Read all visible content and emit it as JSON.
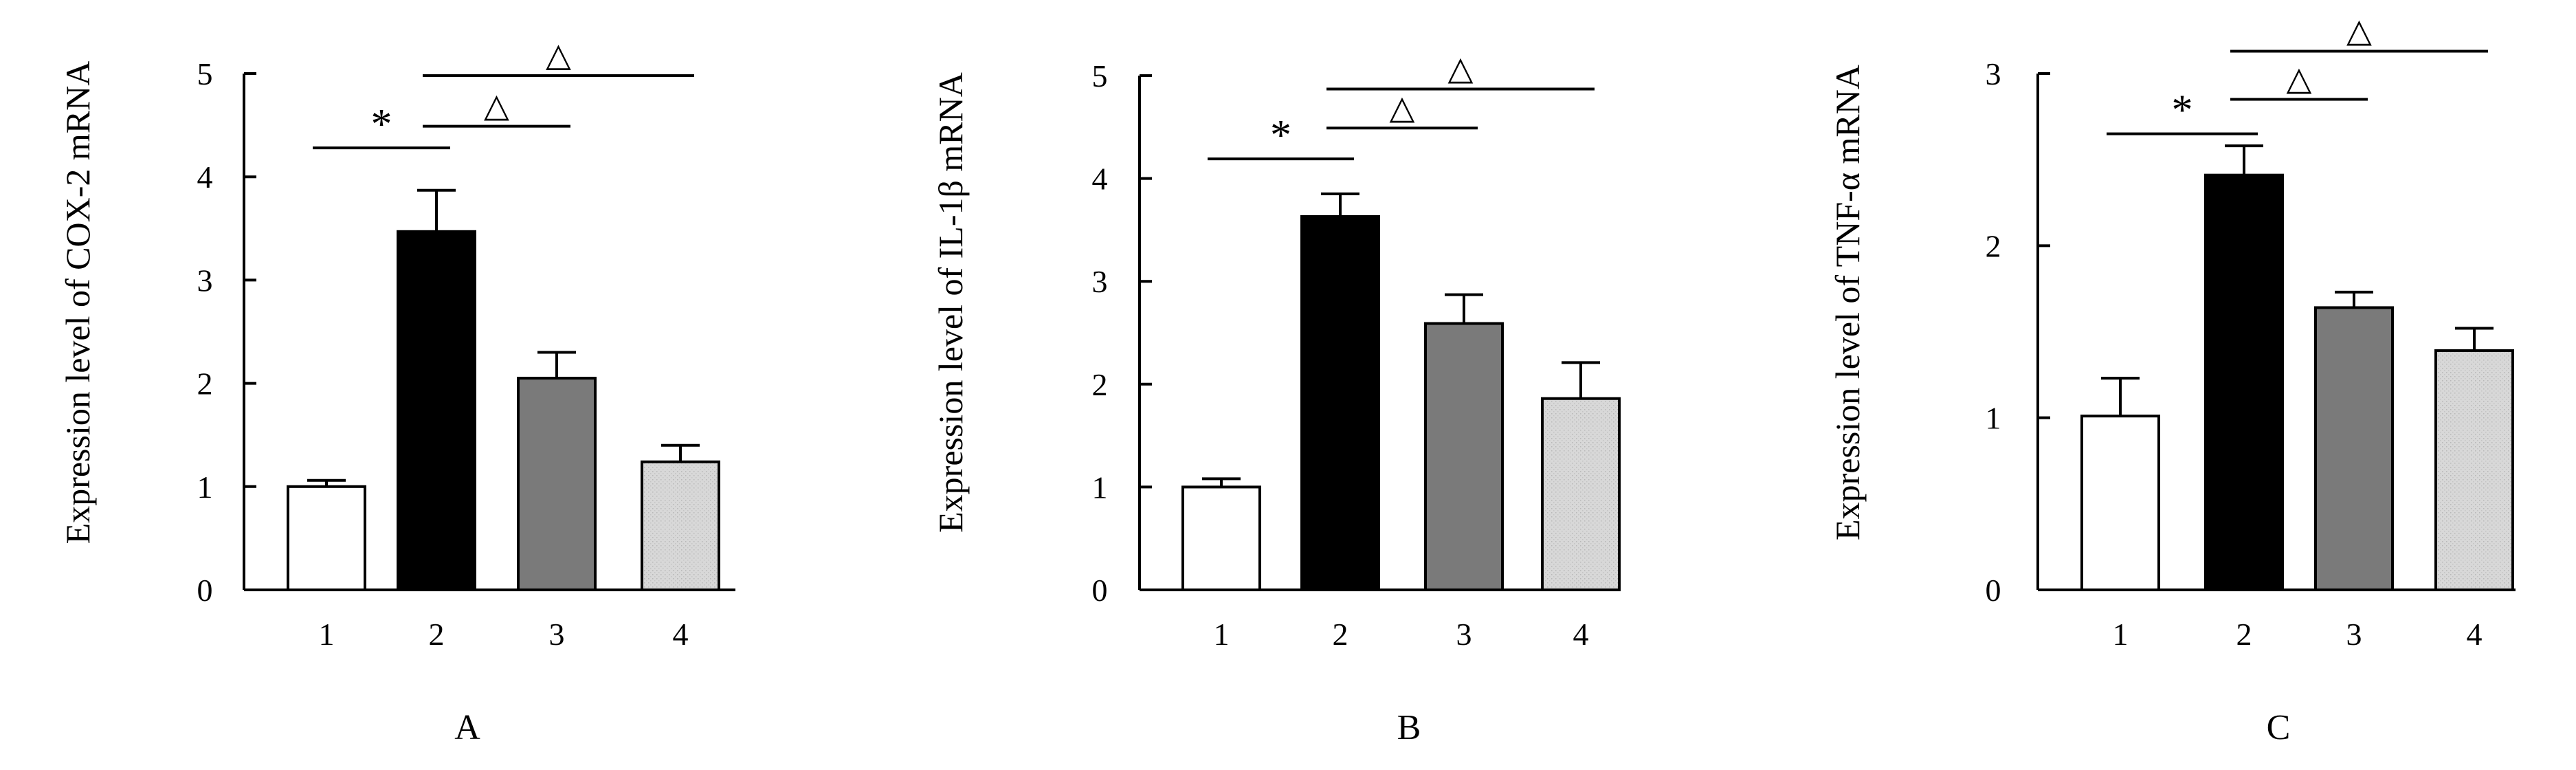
{
  "chart_data": [
    {
      "type": "bar",
      "panel_label": "A",
      "categories": [
        "1",
        "2",
        "3",
        "4"
      ],
      "values": [
        1.0,
        3.47,
        2.05,
        1.24
      ],
      "errors": [
        0.06,
        0.4,
        0.25,
        0.16
      ],
      "bar_colors": [
        "#ffffff",
        "#000000",
        "#7a7a7a",
        "#d4d4d4"
      ],
      "ylabel": "Expression level of COX-2 mRNA",
      "xlabel": "",
      "ylim": [
        0,
        5
      ],
      "yticks": [
        "0",
        "1",
        "2",
        "3",
        "4",
        "5"
      ],
      "significance": [
        {
          "from": 1,
          "to": 2,
          "symbol": "*",
          "y": 4.28
        },
        {
          "from": 2,
          "to": 3,
          "symbol": "△",
          "y": 4.49
        },
        {
          "from": 2,
          "to": 4,
          "symbol": "△",
          "y": 4.98
        }
      ]
    },
    {
      "type": "bar",
      "panel_label": "B",
      "categories": [
        "1",
        "2",
        "3",
        "4"
      ],
      "values": [
        1.0,
        3.63,
        2.59,
        1.86
      ],
      "errors": [
        0.08,
        0.22,
        0.28,
        0.35
      ],
      "bar_colors": [
        "#ffffff",
        "#000000",
        "#7a7a7a",
        "#d4d4d4"
      ],
      "ylabel": "Expression level of IL-1β mRNA",
      "xlabel": "",
      "ylim": [
        0,
        5
      ],
      "yticks": [
        "0",
        "1",
        "2",
        "3",
        "4",
        "5"
      ],
      "significance": [
        {
          "from": 1,
          "to": 2,
          "symbol": "*",
          "y": 4.19
        },
        {
          "from": 2,
          "to": 3,
          "symbol": "△",
          "y": 4.49
        },
        {
          "from": 2,
          "to": 4,
          "symbol": "△",
          "y": 4.87
        }
      ]
    },
    {
      "type": "bar",
      "panel_label": "C",
      "categories": [
        "1",
        "2",
        "3",
        "4"
      ],
      "values": [
        1.01,
        2.41,
        1.64,
        1.39
      ],
      "errors": [
        0.22,
        0.17,
        0.09,
        0.13
      ],
      "bar_colors": [
        "#ffffff",
        "#000000",
        "#7a7a7a",
        "#d4d4d4"
      ],
      "ylabel": "Expression level of TNF-α mRNA",
      "xlabel": "",
      "ylim": [
        0,
        3
      ],
      "yticks": [
        "0",
        "1",
        "2",
        "3"
      ],
      "significance": [
        {
          "from": 1,
          "to": 2,
          "symbol": "*",
          "y": 2.65
        },
        {
          "from": 2,
          "to": 3,
          "symbol": "△",
          "y": 2.85
        },
        {
          "from": 2,
          "to": 4,
          "symbol": "△",
          "y": 3.13
        }
      ]
    }
  ]
}
